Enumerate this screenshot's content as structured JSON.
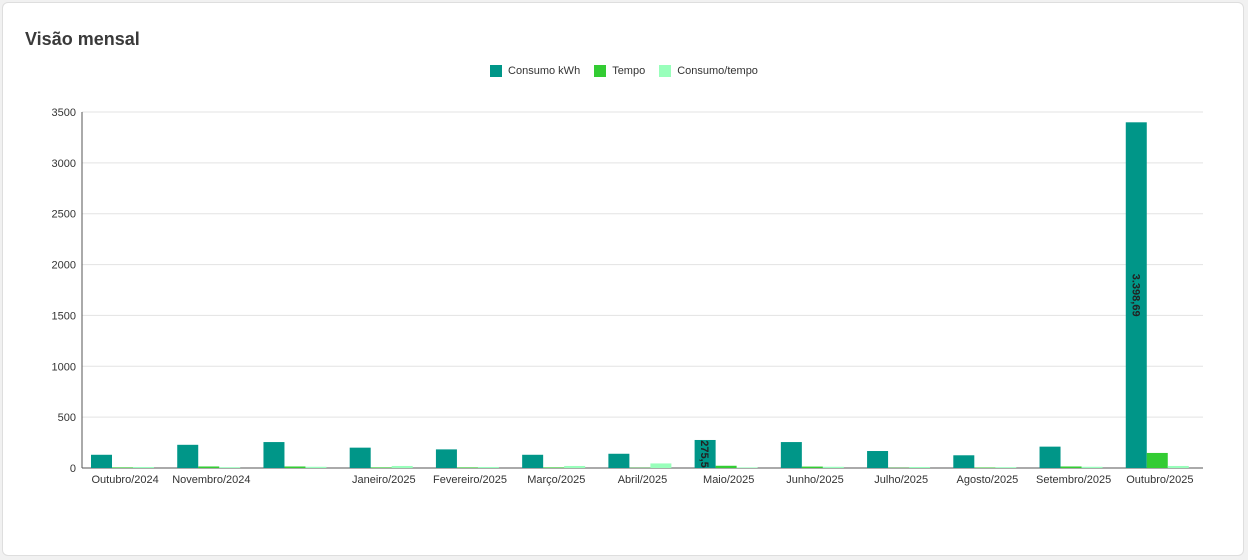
{
  "card": {
    "title": "Visão mensal"
  },
  "chart_data": {
    "type": "bar",
    "categories": [
      "Outubro/2024",
      "Novembro/2024",
      "",
      "Janeiro/2025",
      "Fevereiro/2025",
      "Março/2025",
      "Abril/2025",
      "Maio/2025",
      "Junho/2025",
      "Julho/2025",
      "Agosto/2025",
      "Setembro/2025",
      "Outubro/2025"
    ],
    "series": [
      {
        "name": "Consumo kWh",
        "color": "#009688",
        "values": [
          130,
          228,
          255,
          200,
          183,
          130,
          140,
          275.5,
          255,
          167,
          125,
          210,
          3398.69
        ]
      },
      {
        "name": "Tempo",
        "color": "#33cc33",
        "values": [
          6,
          15,
          15,
          6,
          6,
          6,
          3,
          22,
          14,
          3,
          5,
          15,
          148
        ]
      },
      {
        "name": "Consumo/tempo",
        "color": "#99ffbb",
        "values": [
          10,
          8,
          12,
          20,
          10,
          20,
          45,
          6,
          12,
          10,
          8,
          12,
          20
        ]
      }
    ],
    "data_labels": [
      {
        "category_index": 7,
        "series_index": 0,
        "text": "275,5"
      },
      {
        "category_index": 12,
        "series_index": 0,
        "text": "3.398,69"
      }
    ],
    "yticks": [
      0,
      500,
      1000,
      1500,
      2000,
      2500,
      3000,
      3500
    ],
    "ylim": [
      0,
      3500
    ],
    "xlabel": "",
    "ylabel": "",
    "grid": true,
    "legend_position": "top-center"
  }
}
